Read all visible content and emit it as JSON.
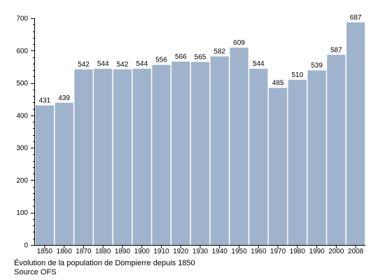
{
  "chart_data": {
    "type": "bar",
    "categories": [
      "1850",
      "1860",
      "1870",
      "1880",
      "1890",
      "1900",
      "1910",
      "1920",
      "1930",
      "1940",
      "1950",
      "1960",
      "1970",
      "1980",
      "1990",
      "2000",
      "2008"
    ],
    "values": [
      431,
      439,
      542,
      544,
      542,
      544,
      556,
      566,
      565,
      582,
      609,
      544,
      485,
      510,
      539,
      587,
      687
    ],
    "ylim": [
      0,
      700
    ],
    "yticks": [
      0,
      100,
      200,
      300,
      400,
      500,
      600,
      700
    ],
    "bar_color": "#9fb4cc",
    "grid": false,
    "data_labels": true
  },
  "caption": {
    "line1": "Évolution de la population de Dompierre depuis 1850",
    "line2": "Source OFS"
  }
}
